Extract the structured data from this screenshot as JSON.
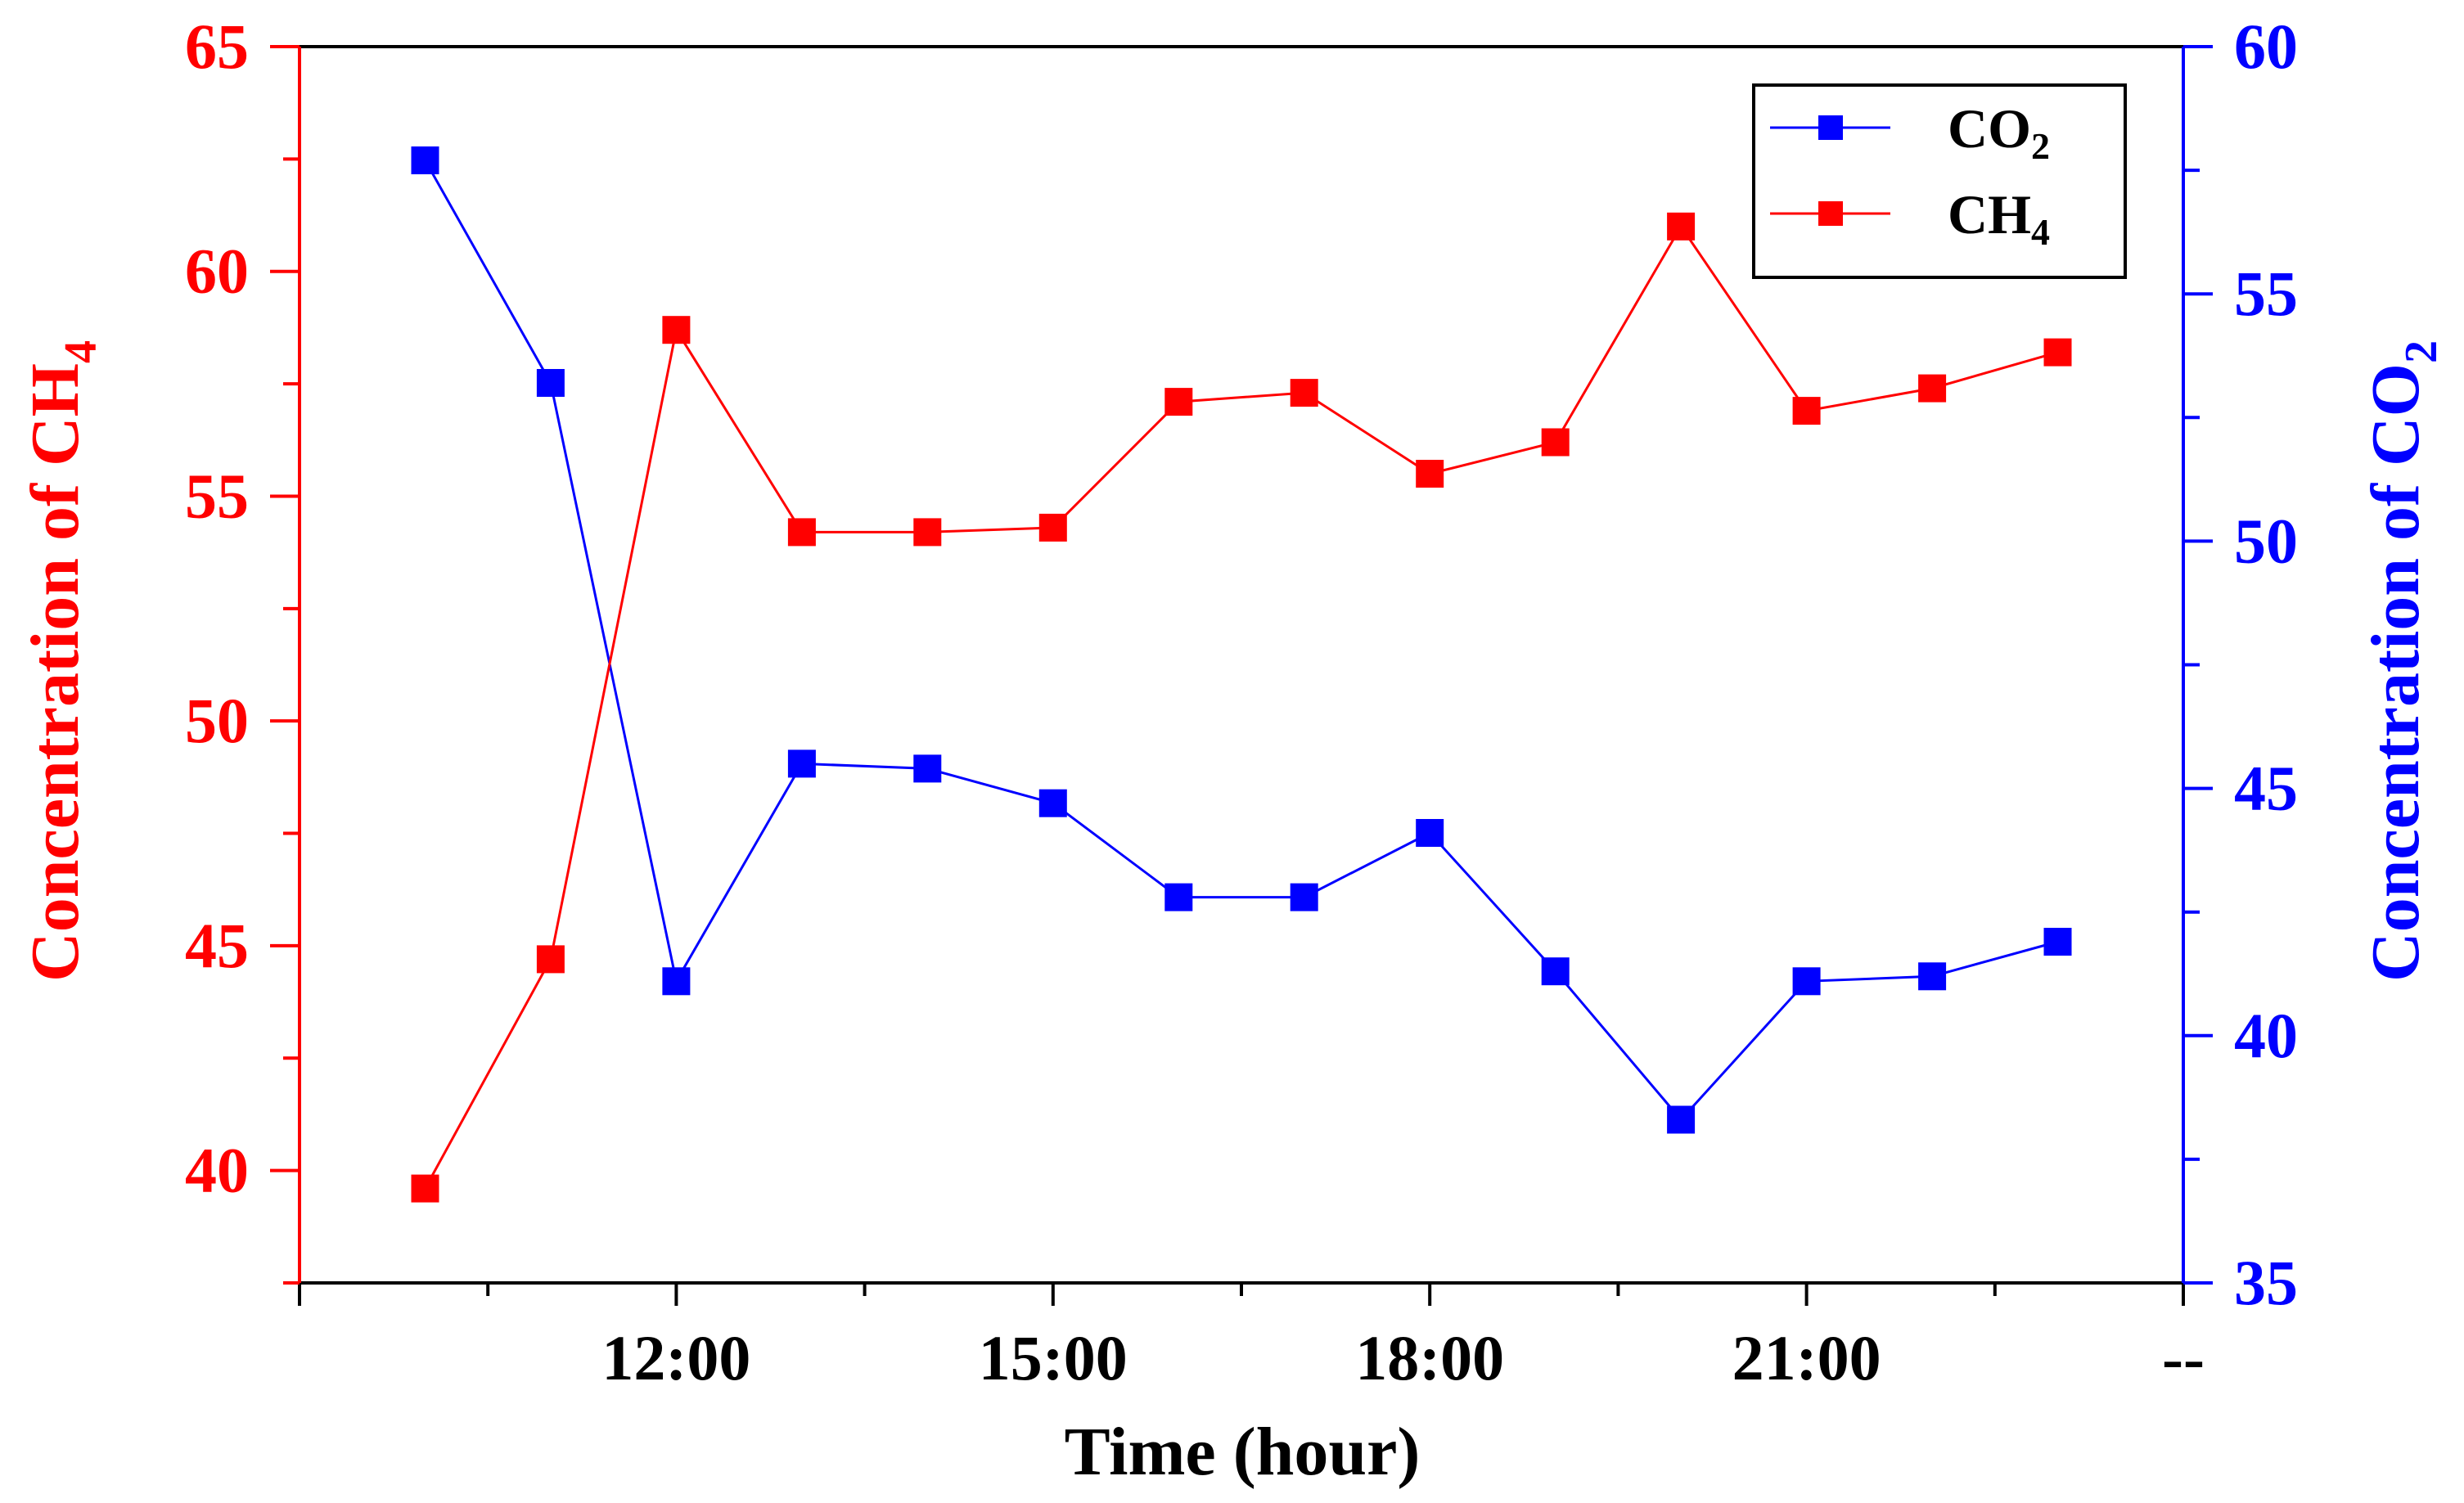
{
  "chart_data": {
    "type": "line",
    "x": [
      10,
      11,
      12,
      13,
      14,
      15,
      16,
      17,
      18,
      19,
      20,
      21,
      22,
      23
    ],
    "xlim": [
      9,
      24
    ],
    "x_major_ticks": [
      {
        "x": 12,
        "label": "12:00"
      },
      {
        "x": 15,
        "label": "15:00"
      },
      {
        "x": 18,
        "label": "18:00"
      },
      {
        "x": 21,
        "label": "21:00"
      },
      {
        "x": 24,
        "label": "--"
      }
    ],
    "xlabel": "Time (hour)",
    "left_axis": {
      "label_main": "Concentration of CH",
      "label_sub": "4",
      "ylim": [
        37.5,
        65
      ],
      "ticks": [
        40,
        45,
        50,
        55,
        60,
        65
      ],
      "color": "#ff0000"
    },
    "right_axis": {
      "label_main": "Concentration of CO",
      "label_sub": "2",
      "ylim": [
        35,
        60
      ],
      "ticks": [
        35,
        40,
        45,
        50,
        55,
        60
      ],
      "color": "#0000ff"
    },
    "series": [
      {
        "name_main": "CO",
        "name_sub": "2",
        "axis": "right",
        "color": "#0000ff",
        "marker": "square",
        "values": [
          57.7,
          53.2,
          41.1,
          45.5,
          45.4,
          44.7,
          42.8,
          42.8,
          44.1,
          41.3,
          38.3,
          41.1,
          41.2,
          41.9
        ]
      },
      {
        "name_main": "CH",
        "name_sub": "4",
        "axis": "left",
        "color": "#ff0000",
        "marker": "square",
        "values": [
          39.6,
          44.7,
          58.7,
          54.2,
          54.2,
          54.3,
          57.1,
          57.3,
          55.5,
          56.2,
          61.0,
          56.9,
          57.4,
          58.2
        ]
      }
    ],
    "legend": "top-right",
    "grid": false
  }
}
